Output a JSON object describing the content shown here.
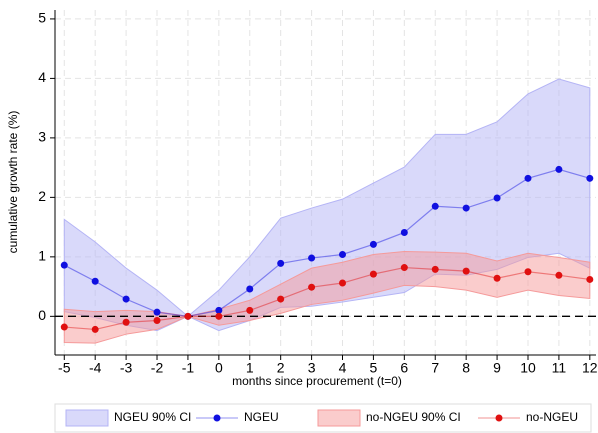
{
  "chart_data": {
    "type": "line",
    "xlabel": "months since procurement (t=0)",
    "ylabel": "cumulative growth rate (%)",
    "x": [
      -5,
      -4,
      -3,
      -2,
      -1,
      0,
      1,
      2,
      3,
      4,
      5,
      6,
      7,
      8,
      9,
      10,
      11,
      12
    ],
    "xlim": [
      -5.3,
      12.2
    ],
    "xticks": [
      -5,
      -4,
      -3,
      -2,
      -1,
      0,
      1,
      2,
      3,
      4,
      5,
      6,
      7,
      8,
      9,
      10,
      11,
      12
    ],
    "ylim": [
      -0.65,
      5.15
    ],
    "yticks": [
      0,
      1,
      2,
      3,
      4,
      5
    ],
    "grid": true,
    "hline": 0,
    "legend": "bottom",
    "bands": [
      {
        "name": "NGEU 90% CI",
        "color": "#b4b4f5",
        "lower": [
          0.08,
          -0.02,
          -0.15,
          -0.24,
          0,
          -0.24,
          -0.07,
          0.15,
          0.17,
          0.24,
          0.32,
          0.4,
          0.71,
          0.69,
          0.79,
          0.99,
          1.06,
          0.81
        ],
        "upper": [
          1.63,
          1.25,
          0.81,
          0.44,
          0,
          0.44,
          1.0,
          1.65,
          1.82,
          1.97,
          2.24,
          2.51,
          3.06,
          3.06,
          3.27,
          3.74,
          3.99,
          3.84
        ]
      },
      {
        "name": "no-NGEU 90% CI",
        "color": "#f59a9a",
        "lower": [
          -0.44,
          -0.45,
          -0.3,
          -0.22,
          0,
          -0.15,
          -0.07,
          0.05,
          0.2,
          0.27,
          0.39,
          0.52,
          0.5,
          0.44,
          0.32,
          0.44,
          0.35,
          0.3
        ],
        "upper": [
          0.12,
          0.08,
          0.1,
          0.08,
          0,
          0.12,
          0.27,
          0.54,
          0.81,
          0.91,
          1.04,
          1.09,
          1.08,
          1.06,
          0.93,
          1.06,
          0.99,
          0.91
        ]
      }
    ],
    "series": [
      {
        "name": "NGEU",
        "color": "#1010e0",
        "values": [
          0.86,
          0.59,
          0.29,
          0.07,
          0,
          0.1,
          0.46,
          0.89,
          0.98,
          1.04,
          1.21,
          1.41,
          1.85,
          1.82,
          1.99,
          2.32,
          2.47,
          2.32
        ]
      },
      {
        "name": "no-NGEU",
        "color": "#e01010",
        "values": [
          -0.18,
          -0.22,
          -0.1,
          -0.07,
          0,
          0,
          0.1,
          0.29,
          0.49,
          0.56,
          0.71,
          0.82,
          0.79,
          0.76,
          0.64,
          0.75,
          0.69,
          0.62
        ]
      }
    ]
  }
}
